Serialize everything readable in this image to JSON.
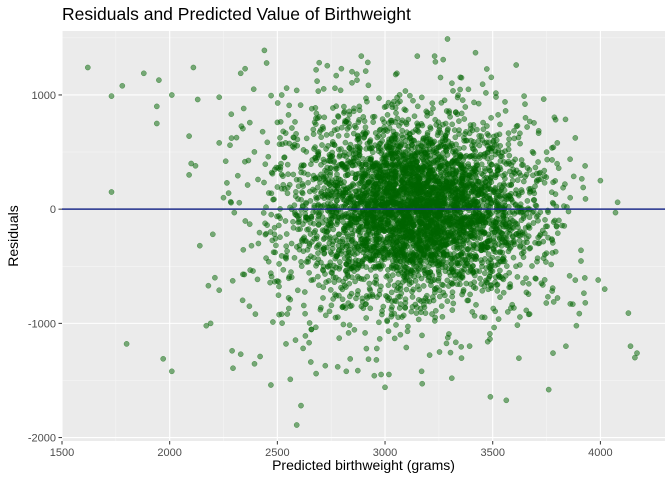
{
  "chart_data": {
    "type": "scatter",
    "title": "Residuals and Predicted Value of Birthweight",
    "xlabel": "Predicted birthweight (grams)",
    "ylabel": "Residuals",
    "xlim": [
      1500,
      4300
    ],
    "ylim": [
      -2030,
      1560
    ],
    "x_ticks": [
      1500,
      2000,
      2500,
      3000,
      3500,
      4000
    ],
    "x_tick_labels": [
      "1500",
      "2000",
      "2500",
      "3000",
      "3500",
      "4000"
    ],
    "y_ticks": [
      -2000,
      -1000,
      0,
      1000
    ],
    "y_tick_labels": [
      "-2000",
      "-1000",
      "0",
      "1000"
    ],
    "grid": true,
    "point_color": "#006400",
    "point_opacity": 0.5,
    "reference_line": {
      "y": 0,
      "color": "#1f2d8a"
    },
    "background_color": "#ebebeb",
    "points": [
      [
        1620,
        1240
      ],
      [
        1730,
        990
      ],
      [
        1780,
        1080
      ],
      [
        1880,
        1190
      ],
      [
        1950,
        1130
      ],
      [
        1940,
        900
      ],
      [
        1940,
        750
      ],
      [
        2010,
        1000
      ],
      [
        2110,
        1240
      ],
      [
        2130,
        960
      ],
      [
        1730,
        150
      ],
      [
        1800,
        -1180
      ],
      [
        1970,
        -1310
      ],
      [
        2010,
        -1420
      ],
      [
        2090,
        640
      ],
      [
        2100,
        400
      ],
      [
        2120,
        380
      ],
      [
        2140,
        -320
      ],
      [
        2180,
        -670
      ],
      [
        2190,
        -1000
      ],
      [
        2170,
        -1020
      ],
      [
        2230,
        980
      ],
      [
        2230,
        580
      ],
      [
        2260,
        420
      ],
      [
        2330,
        1190
      ],
      [
        2350,
        1230
      ],
      [
        2390,
        1050
      ],
      [
        2440,
        1390
      ],
      [
        2450,
        1280
      ],
      [
        2280,
        560
      ],
      [
        2230,
        -710
      ],
      [
        2340,
        -570
      ],
      [
        2370,
        -850
      ],
      [
        2330,
        -1270
      ],
      [
        2290,
        -1240
      ],
      [
        2420,
        -1290
      ],
      [
        2470,
        -1540
      ],
      [
        2560,
        -1490
      ],
      [
        2610,
        -1720
      ],
      [
        2590,
        -1890
      ],
      [
        2780,
        -1380
      ],
      [
        2820,
        -1420
      ],
      [
        2960,
        -1320
      ],
      [
        3000,
        -1560
      ],
      [
        3170,
        -1420
      ],
      [
        3310,
        -1480
      ],
      [
        3760,
        -1580
      ],
      [
        3840,
        -1200
      ],
      [
        3780,
        -1260
      ],
      [
        3930,
        -820
      ],
      [
        3990,
        -620
      ],
      [
        4020,
        -700
      ],
      [
        4140,
        -1200
      ],
      [
        4160,
        -1300
      ],
      [
        4130,
        -910
      ],
      [
        4070,
        -30
      ],
      [
        4080,
        60
      ],
      [
        4000,
        250
      ],
      [
        3920,
        190
      ],
      [
        3860,
        100
      ],
      [
        3750,
        500
      ],
      [
        3800,
        580
      ],
      [
        3600,
        620
      ],
      [
        3560,
        860
      ],
      [
        3650,
        920
      ],
      [
        3290,
        1490
      ],
      [
        3420,
        1370
      ],
      [
        3270,
        1310
      ],
      [
        3230,
        1340
      ],
      [
        3150,
        1340
      ],
      [
        2890,
        1340
      ],
      [
        2870,
        1130
      ],
      [
        2680,
        1220
      ],
      [
        2590,
        1040
      ],
      [
        2520,
        1000
      ],
      [
        4170,
        -1260
      ],
      [
        2090,
        300
      ],
      [
        2200,
        -220
      ],
      [
        2250,
        100
      ],
      [
        2300,
        -30
      ],
      [
        2210,
        -600
      ],
      [
        2380,
        -320
      ],
      [
        2410,
        260
      ],
      [
        2460,
        -460
      ],
      [
        2500,
        760
      ],
      [
        2520,
        -920
      ],
      [
        2540,
        -1180
      ],
      [
        2630,
        -1110
      ],
      [
        2660,
        880
      ],
      [
        2680,
        -1440
      ],
      [
        2700,
        -880
      ]
    ],
    "core_clusters": [
      {
        "cx": 3150,
        "cy": 0,
        "sx": 230,
        "sy": 360,
        "n": 3200
      },
      {
        "cx": 3100,
        "cy": 0,
        "sx": 360,
        "sy": 520,
        "n": 700
      },
      {
        "cx": 2750,
        "cy": 0,
        "sx": 220,
        "sy": 560,
        "n": 350
      },
      {
        "cx": 3550,
        "cy": -50,
        "sx": 180,
        "sy": 480,
        "n": 250
      }
    ],
    "cluster_bounds": {
      "x": [
        2250,
        3950
      ],
      "y": [
        -1700,
        1300
      ]
    }
  }
}
